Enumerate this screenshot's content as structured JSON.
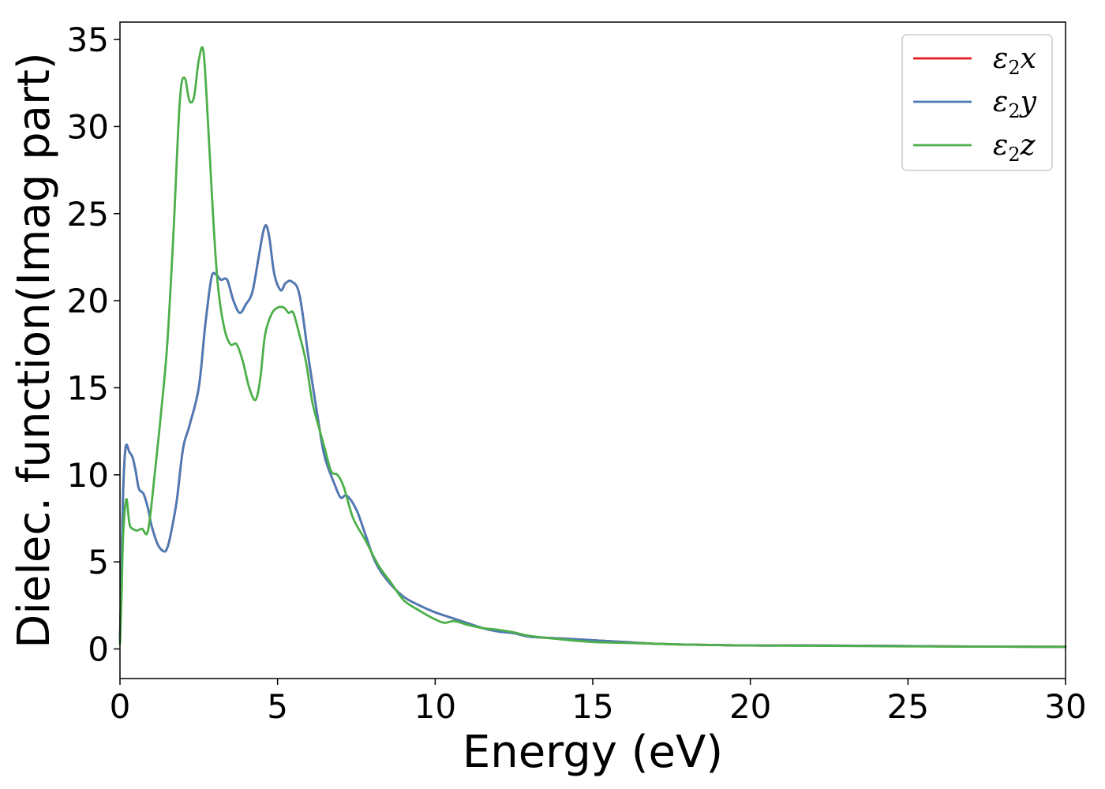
{
  "chart_data": {
    "type": "line",
    "title": "",
    "xlabel": "Energy (eV)",
    "ylabel": "Dielec. function(Imag part)",
    "xlim": [
      0,
      30
    ],
    "ylim": [
      -1.7,
      36
    ],
    "xticks": [
      0,
      5,
      10,
      15,
      20,
      25,
      30
    ],
    "yticks": [
      0,
      5,
      10,
      15,
      20,
      25,
      30,
      35
    ],
    "grid": false,
    "legend_position": "top-right",
    "series": [
      {
        "name": "ε2x",
        "legend_base": "ε",
        "legend_sub": "2",
        "legend_var": "x",
        "color": "#e41a1c",
        "x": [
          0,
          0.05,
          0.1,
          0.18,
          0.3,
          0.4,
          0.5,
          0.6,
          0.75,
          0.9,
          1.0,
          1.2,
          1.4,
          1.5,
          1.6,
          1.8,
          2.0,
          2.2,
          2.5,
          2.7,
          2.9,
          3.05,
          3.2,
          3.4,
          3.6,
          3.8,
          4.0,
          4.2,
          4.4,
          4.55,
          4.65,
          4.75,
          4.9,
          5.1,
          5.25,
          5.45,
          5.7,
          6.0,
          6.3,
          6.5,
          6.8,
          7.0,
          7.2,
          7.5,
          7.8,
          8.1,
          8.5,
          9.0,
          9.5,
          10.0,
          10.5,
          11.0,
          11.5,
          12.0,
          12.5,
          13.0,
          14.0,
          15.0,
          16.0,
          17.0,
          18.0,
          20.0,
          22.0,
          24.0,
          26.0,
          28.0,
          30.0
        ],
        "values": [
          0.5,
          4.5,
          9.0,
          11.6,
          11.3,
          11.0,
          10.2,
          9.2,
          8.9,
          8.0,
          7.1,
          6.0,
          5.6,
          5.8,
          6.5,
          8.5,
          11.5,
          12.8,
          15.0,
          18.5,
          21.3,
          21.5,
          21.2,
          21.2,
          20.0,
          19.3,
          19.8,
          20.5,
          22.5,
          24.0,
          24.3,
          23.5,
          21.5,
          20.6,
          21.0,
          21.1,
          20.3,
          16.5,
          13.0,
          11.0,
          9.5,
          8.7,
          8.8,
          8.0,
          6.5,
          5.0,
          3.9,
          3.0,
          2.5,
          2.1,
          1.8,
          1.5,
          1.2,
          1.0,
          0.9,
          0.7,
          0.6,
          0.5,
          0.4,
          0.3,
          0.25,
          0.2,
          0.2,
          0.18,
          0.15,
          0.13,
          0.12
        ]
      },
      {
        "name": "ε2y",
        "legend_base": "ε",
        "legend_sub": "2",
        "legend_var": "y",
        "color": "#4a7bb7",
        "x": [
          0,
          0.05,
          0.1,
          0.18,
          0.3,
          0.4,
          0.5,
          0.6,
          0.75,
          0.9,
          1.0,
          1.2,
          1.4,
          1.5,
          1.6,
          1.8,
          2.0,
          2.2,
          2.5,
          2.7,
          2.9,
          3.05,
          3.2,
          3.4,
          3.6,
          3.8,
          4.0,
          4.2,
          4.4,
          4.55,
          4.65,
          4.75,
          4.9,
          5.1,
          5.25,
          5.45,
          5.7,
          6.0,
          6.3,
          6.5,
          6.8,
          7.0,
          7.2,
          7.5,
          7.8,
          8.1,
          8.5,
          9.0,
          9.5,
          10.0,
          10.5,
          11.0,
          11.5,
          12.0,
          12.5,
          13.0,
          14.0,
          15.0,
          16.0,
          17.0,
          18.0,
          20.0,
          22.0,
          24.0,
          26.0,
          28.0,
          30.0
        ],
        "values": [
          0.5,
          4.5,
          9.0,
          11.6,
          11.3,
          11.0,
          10.2,
          9.2,
          8.9,
          8.0,
          7.1,
          6.0,
          5.6,
          5.8,
          6.5,
          8.5,
          11.5,
          12.8,
          15.0,
          18.5,
          21.3,
          21.5,
          21.2,
          21.2,
          20.0,
          19.3,
          19.8,
          20.5,
          22.5,
          24.0,
          24.3,
          23.5,
          21.5,
          20.6,
          21.0,
          21.1,
          20.3,
          16.5,
          13.0,
          11.0,
          9.5,
          8.7,
          8.8,
          8.0,
          6.5,
          5.0,
          3.9,
          3.0,
          2.5,
          2.1,
          1.8,
          1.5,
          1.2,
          1.0,
          0.9,
          0.7,
          0.6,
          0.5,
          0.4,
          0.3,
          0.25,
          0.2,
          0.2,
          0.18,
          0.15,
          0.13,
          0.12
        ]
      },
      {
        "name": "ε2z",
        "legend_base": "ε",
        "legend_sub": "2",
        "legend_var": "z",
        "color": "#4daf4a",
        "x": [
          0,
          0.05,
          0.1,
          0.2,
          0.3,
          0.4,
          0.55,
          0.7,
          0.85,
          0.95,
          1.1,
          1.3,
          1.5,
          1.7,
          1.9,
          2.05,
          2.2,
          2.35,
          2.5,
          2.65,
          2.8,
          2.95,
          3.1,
          3.3,
          3.5,
          3.7,
          3.9,
          4.1,
          4.3,
          4.45,
          4.6,
          4.8,
          5.0,
          5.2,
          5.35,
          5.5,
          5.7,
          5.9,
          6.1,
          6.3,
          6.5,
          6.7,
          6.9,
          7.1,
          7.4,
          7.8,
          8.2,
          8.6,
          9.0,
          9.5,
          10.0,
          10.3,
          10.6,
          11.0,
          11.5,
          12.0,
          12.5,
          13.0,
          14.0,
          15.0,
          16.0,
          17.0,
          18.0,
          20.0,
          22.0,
          24.0,
          26.0,
          28.0,
          30.0
        ],
        "values": [
          0.3,
          3.0,
          6.5,
          8.6,
          7.2,
          6.9,
          6.8,
          6.9,
          6.6,
          7.5,
          10.0,
          13.5,
          17.5,
          24.0,
          31.5,
          32.8,
          31.5,
          31.7,
          33.8,
          34.3,
          30.0,
          25.0,
          21.0,
          18.5,
          17.5,
          17.5,
          16.5,
          15.0,
          14.3,
          15.5,
          18.0,
          19.2,
          19.6,
          19.6,
          19.3,
          19.3,
          18.0,
          16.5,
          14.2,
          12.8,
          11.5,
          10.2,
          10.0,
          9.3,
          7.5,
          6.2,
          4.8,
          3.8,
          2.8,
          2.2,
          1.7,
          1.5,
          1.6,
          1.4,
          1.2,
          1.1,
          0.95,
          0.75,
          0.55,
          0.4,
          0.35,
          0.3,
          0.25,
          0.2,
          0.18,
          0.16,
          0.14,
          0.13,
          0.12
        ]
      }
    ]
  }
}
